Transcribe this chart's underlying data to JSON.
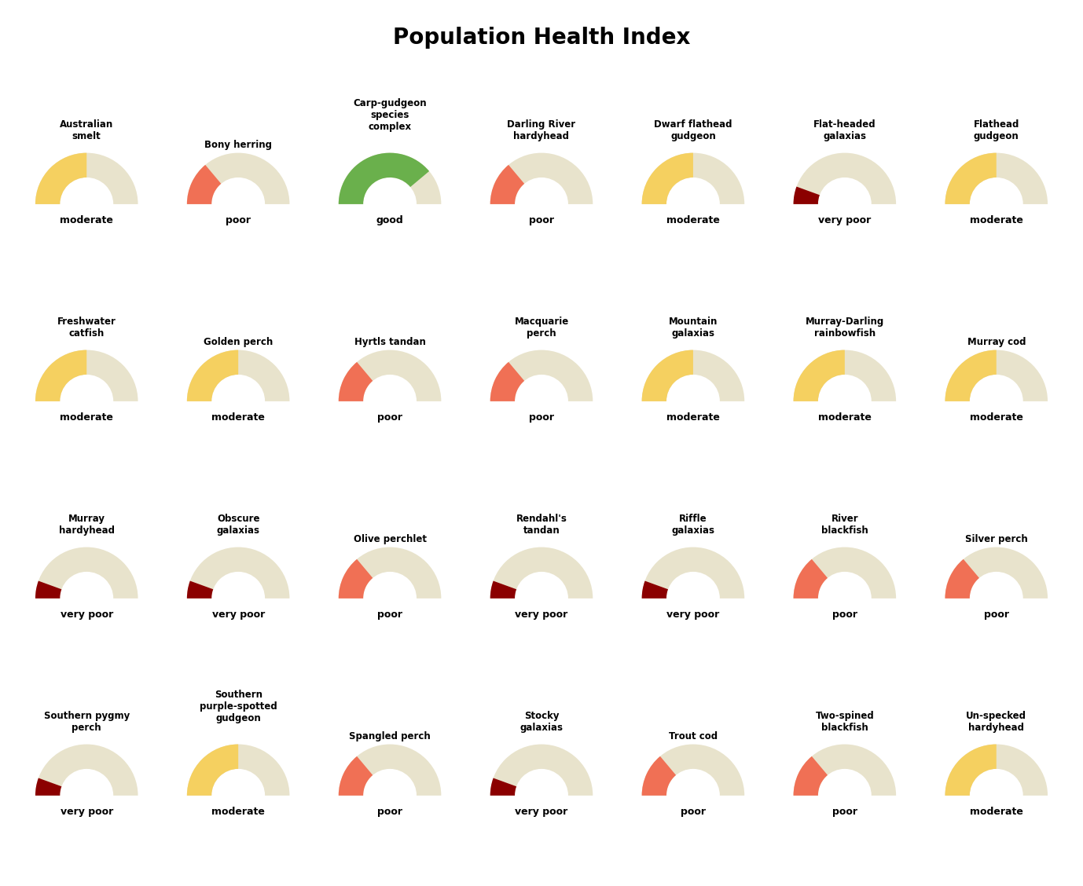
{
  "title": "Population Health Index",
  "species": [
    {
      "name": "Australian\nsmelt",
      "status": "moderate"
    },
    {
      "name": "Bony herring",
      "status": "poor"
    },
    {
      "name": "Carp-gudgeon\nspecies\ncomplex",
      "status": "good"
    },
    {
      "name": "Darling River\nhardyhead",
      "status": "poor"
    },
    {
      "name": "Dwarf flathead\ngudgeon",
      "status": "moderate"
    },
    {
      "name": "Flat-headed\ngalaxias",
      "status": "very poor"
    },
    {
      "name": "Flathead\ngudgeon",
      "status": "moderate"
    },
    {
      "name": "Freshwater\ncatfish",
      "status": "moderate"
    },
    {
      "name": "Golden perch",
      "status": "moderate"
    },
    {
      "name": "Hyrtls tandan",
      "status": "poor"
    },
    {
      "name": "Macquarie\nperch",
      "status": "poor"
    },
    {
      "name": "Mountain\ngalaxias",
      "status": "moderate"
    },
    {
      "name": "Murray-Darling\nrainbowfish",
      "status": "moderate"
    },
    {
      "name": "Murray cod",
      "status": "moderate"
    },
    {
      "name": "Murray\nhardyhead",
      "status": "very poor"
    },
    {
      "name": "Obscure\ngalaxias",
      "status": "very poor"
    },
    {
      "name": "Olive perchlet",
      "status": "poor"
    },
    {
      "name": "Rendahl's\ntandan",
      "status": "very poor"
    },
    {
      "name": "Riffle\ngalaxias",
      "status": "very poor"
    },
    {
      "name": "River\nblackfish",
      "status": "poor"
    },
    {
      "name": "Silver perch",
      "status": "poor"
    },
    {
      "name": "Southern pygmy\nperch",
      "status": "very poor"
    },
    {
      "name": "Southern\npurple-spotted\ngudgeon",
      "status": "moderate"
    },
    {
      "name": "Spangled perch",
      "status": "poor"
    },
    {
      "name": "Stocky\ngalaxias",
      "status": "very poor"
    },
    {
      "name": "Trout cod",
      "status": "poor"
    },
    {
      "name": "Two-spined\nblackfish",
      "status": "poor"
    },
    {
      "name": "Un-specked\nhardyhead",
      "status": "moderate"
    }
  ],
  "status_color": {
    "good": "#6ab04c",
    "moderate": "#f5d060",
    "poor": "#f07055",
    "very poor": "#8B0000"
  },
  "bg_color": "#e8e3cc",
  "status_sweep": {
    "very poor": 20,
    "poor": 50,
    "moderate": 90,
    "good": 140
  },
  "cols": 7,
  "rows": 4,
  "outer_r": 1.0,
  "inner_r": 0.52,
  "title_fontsize": 20,
  "label_fontsize": 9,
  "name_fontsize": 8.5
}
